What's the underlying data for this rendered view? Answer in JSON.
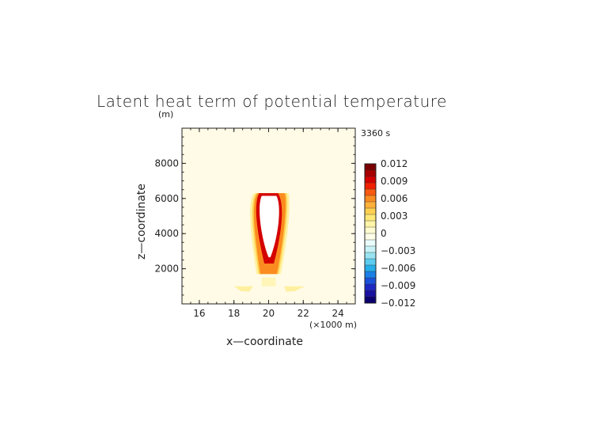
{
  "chart_data": {
    "type": "heatmap",
    "title": "Latent heat term of potential temperature",
    "time_label": "3360 s",
    "xlabel": "x—coordinate",
    "ylabel": "z—coordinate",
    "x_unit": "(×1000 m)",
    "y_unit": "(m)",
    "xlim": [
      15,
      25
    ],
    "ylim": [
      0,
      10000
    ],
    "xticks": [
      16,
      18,
      20,
      22,
      24
    ],
    "xtick_labels": [
      "16",
      "18",
      "20",
      "22",
      "24"
    ],
    "yticks": [
      2000,
      4000,
      6000,
      8000
    ],
    "ytick_labels": [
      "2000",
      "4000",
      "6000",
      "8000"
    ],
    "background_value": 0.0004,
    "colorbar": {
      "min": -0.012,
      "max": 0.012,
      "tick_values": [
        0.012,
        0.009,
        0.006,
        0.003,
        0,
        -0.003,
        -0.006,
        -0.009,
        -0.012
      ],
      "tick_labels": [
        "0.012",
        "0.009",
        "0.006",
        "0.003",
        "0",
        "−0.003",
        "−0.006",
        "−0.009",
        "−0.012"
      ],
      "colors_high_to_low": [
        "#7a0000",
        "#a80000",
        "#d40000",
        "#f02000",
        "#f85a10",
        "#fb8c20",
        "#fdb03a",
        "#fed050",
        "#fee877",
        "#fff4a8",
        "#fffbd0",
        "#fffee8",
        "#e9fbfb",
        "#c8f2f7",
        "#98e3f2",
        "#5ccdee",
        "#25aeea",
        "#1a80e6",
        "#1a52d9",
        "#1d28c4",
        "#1a10a0",
        "#0a0070"
      ]
    },
    "features": [
      {
        "name": "cloud-core",
        "x_center": 20.05,
        "z_bottom": 2600,
        "z_top": 6300,
        "max_width_km": 1.7,
        "value": null
      },
      {
        "name": "cloud-edge",
        "value": 0.012,
        "x_range": [
          19.3,
          20.9
        ],
        "z_range": [
          2400,
          6300
        ]
      },
      {
        "name": "lower-shoulders",
        "value": 0.001,
        "x_range": [
          18.0,
          22.0
        ],
        "z_range": [
          700,
          1000
        ]
      }
    ]
  }
}
